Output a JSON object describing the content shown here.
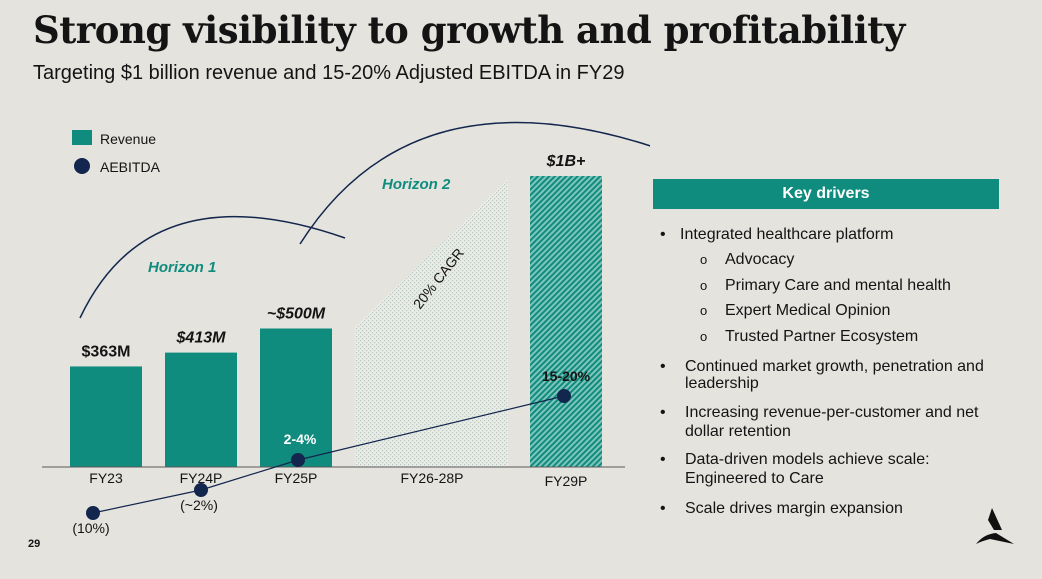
{
  "header": {
    "title": "Strong visibility to growth and profitability",
    "subtitle": "Targeting $1 billion revenue and 15-20% Adjusted EBITDA in FY29"
  },
  "colors": {
    "teal": "#0f8c7e",
    "navy": "#13264d",
    "background": "#e4e3de"
  },
  "chart_data": {
    "type": "bar",
    "categories": [
      "FY23",
      "FY24P",
      "FY25P",
      "FY26-28P",
      "FY29P"
    ],
    "series": [
      {
        "name": "Revenue",
        "unit": "$M",
        "values": [
          363,
          413,
          500,
          null,
          1000
        ]
      },
      {
        "name": "AEBITDA",
        "unit": "% margin",
        "values": [
          -10,
          -2,
          3,
          null,
          17.5
        ]
      }
    ],
    "data_labels": {
      "revenue": [
        "$363M",
        "$413M",
        "~$500M",
        "",
        "$1B+"
      ],
      "aebitda": [
        "(10%)",
        "(~2%)",
        "2-4%",
        "",
        "15-20%"
      ]
    },
    "legend": [
      "Revenue",
      "AEBITDA"
    ],
    "annotations": {
      "horizon1": "Horizon 1",
      "horizon2": "Horizon 2",
      "cagr": "20% CAGR"
    }
  },
  "key_drivers": {
    "header": "Key drivers",
    "items": [
      {
        "text": "Integrated healthcare platform",
        "subs": [
          "Advocacy",
          "Primary Care and mental health",
          "Expert Medical Opinion",
          "Trusted Partner Ecosystem"
        ]
      },
      {
        "text": "Continued market growth, penetration and leadership"
      },
      {
        "text": "Increasing revenue-per-customer and net dollar retention"
      },
      {
        "text": "Data-driven models achieve scale: Engineered to Care"
      },
      {
        "text": "Scale drives margin expansion"
      }
    ],
    "bullet": "•",
    "sub_bullet": "o"
  },
  "page_number": "29"
}
